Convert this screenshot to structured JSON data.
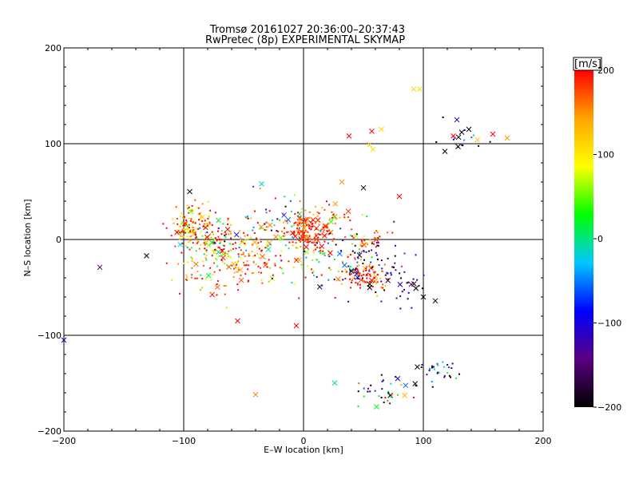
{
  "chart_data": {
    "type": "scatter",
    "title": "Tromsø 20161027 20:36:00–20:37:43",
    "subtitle": "RwPretec (8p) EXPERIMENTAL SKYMAP",
    "xlabel": "E–W location [km]",
    "ylabel": "N–S location [km]",
    "xlim": [
      -200,
      200
    ],
    "ylim": [
      -200,
      200
    ],
    "xticks": [
      -200,
      -100,
      0,
      100,
      200
    ],
    "yticks": [
      -200,
      -100,
      0,
      100,
      200
    ],
    "xtick_labels": [
      "−200",
      "−100",
      "0",
      "100",
      "200"
    ],
    "ytick_labels": [
      "−200",
      "−100",
      "0",
      "100",
      "200"
    ],
    "grid": true,
    "colorbar": {
      "label": "[m/s]",
      "range": [
        -200,
        200
      ],
      "ticks": [
        200,
        100,
        0,
        -100,
        -200
      ],
      "tick_labels": [
        "200",
        "100",
        "0",
        "−100",
        "−200"
      ],
      "colors": [
        "#000000",
        "#5a0080",
        "#0000ff",
        "#00c8ff",
        "#00ff00",
        "#ffff00",
        "#ffa500",
        "#ff0000"
      ]
    },
    "marker_legend": {
      "small_dot": "echo",
      "cross": "strong echo"
    },
    "clusters": [
      {
        "x": -95,
        "y": 15,
        "sx": 10,
        "sy": 10,
        "n": 120,
        "v": 150,
        "vs": 60
      },
      {
        "x": -70,
        "y": 0,
        "sx": 14,
        "sy": 12,
        "n": 110,
        "v": 100,
        "vs": 120
      },
      {
        "x": -45,
        "y": -20,
        "sx": 14,
        "sy": 14,
        "n": 110,
        "v": 170,
        "vs": 60
      },
      {
        "x": -85,
        "y": -30,
        "sx": 12,
        "sy": 14,
        "n": 60,
        "v": 160,
        "vs": 60
      },
      {
        "x": -20,
        "y": 15,
        "sx": 14,
        "sy": 14,
        "n": 70,
        "v": 80,
        "vs": 140
      },
      {
        "x": 5,
        "y": 8,
        "sx": 9,
        "sy": 9,
        "n": 150,
        "v": 185,
        "vs": 30
      },
      {
        "x": 20,
        "y": -20,
        "sx": 18,
        "sy": 18,
        "n": 90,
        "v": 40,
        "vs": 120
      },
      {
        "x": 50,
        "y": -40,
        "sx": 10,
        "sy": 8,
        "n": 90,
        "v": 180,
        "vs": 40
      },
      {
        "x": 60,
        "y": -30,
        "sx": 16,
        "sy": 16,
        "n": 60,
        "v": -150,
        "vs": 70
      },
      {
        "x": 90,
        "y": -50,
        "sx": 8,
        "sy": 8,
        "n": 20,
        "v": -160,
        "vs": 60
      },
      {
        "x": 55,
        "y": 0,
        "sx": 8,
        "sy": 6,
        "n": 30,
        "v": 170,
        "vs": 40
      },
      {
        "x": 30,
        "y": 25,
        "sx": 20,
        "sy": 10,
        "n": 20,
        "v": 150,
        "vs": 80
      },
      {
        "x": 70,
        "y": -160,
        "sx": 12,
        "sy": 8,
        "n": 40,
        "v": -60,
        "vs": 130
      },
      {
        "x": 115,
        "y": -135,
        "sx": 10,
        "sy": 6,
        "n": 30,
        "v": -130,
        "vs": 100
      },
      {
        "x": 130,
        "y": 110,
        "sx": 10,
        "sy": 8,
        "n": 15,
        "v": -150,
        "vs": 80
      }
    ],
    "crosses": [
      {
        "x": 92,
        "y": 157,
        "v": 110
      },
      {
        "x": 97,
        "y": 157,
        "v": 110
      },
      {
        "x": 38,
        "y": 108,
        "v": 200
      },
      {
        "x": 57,
        "y": 113,
        "v": 200
      },
      {
        "x": 55,
        "y": 99,
        "v": 120
      },
      {
        "x": 58,
        "y": 94,
        "v": 110
      },
      {
        "x": 65,
        "y": 115,
        "v": 110
      },
      {
        "x": 125,
        "y": 108,
        "v": 200
      },
      {
        "x": 128,
        "y": 125,
        "v": -120
      },
      {
        "x": 132,
        "y": 112,
        "v": -200
      },
      {
        "x": 138,
        "y": 115,
        "v": -200
      },
      {
        "x": 145,
        "y": 104,
        "v": 120
      },
      {
        "x": 158,
        "y": 110,
        "v": 200
      },
      {
        "x": 170,
        "y": 106,
        "v": 150
      },
      {
        "x": 118,
        "y": 92,
        "v": -200
      },
      {
        "x": 129,
        "y": 97,
        "v": -200
      },
      {
        "x": -170,
        "y": -29,
        "v": -150
      },
      {
        "x": -131,
        "y": -17,
        "v": -200
      },
      {
        "x": -205,
        "y": -105,
        "v": -100
      },
      {
        "x": -55,
        "y": -85,
        "v": 200
      },
      {
        "x": -40,
        "y": -162,
        "v": 150
      },
      {
        "x": -6,
        "y": -90,
        "v": 200
      },
      {
        "x": -35,
        "y": 58,
        "v": -20
      },
      {
        "x": -95,
        "y": 50,
        "v": -200
      },
      {
        "x": 32,
        "y": 60,
        "v": 150
      },
      {
        "x": 50,
        "y": 54,
        "v": -200
      },
      {
        "x": 80,
        "y": 45,
        "v": 200
      },
      {
        "x": 100,
        "y": -60,
        "v": -200
      },
      {
        "x": 110,
        "y": -64,
        "v": -200
      },
      {
        "x": 95,
        "y": -133,
        "v": -200
      }
    ]
  }
}
